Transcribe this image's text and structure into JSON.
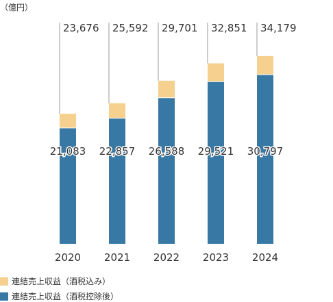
{
  "unit_label": "（億円）",
  "chart_data": {
    "type": "bar",
    "stacked": true,
    "categories": [
      "2020",
      "2021",
      "2022",
      "2023",
      "2024"
    ],
    "series": [
      {
        "name": "連結売上収益（酒税控除後）",
        "color": "#3878a4",
        "values": [
          21083,
          22857,
          26588,
          29521,
          30797
        ],
        "labels": [
          "21,083",
          "22,857",
          "26,588",
          "29,521",
          "30,797"
        ]
      },
      {
        "name": "連結売上収益（酒税込み）",
        "color": "#f5d08f",
        "totals": [
          23676,
          25592,
          29701,
          32851,
          34179
        ],
        "labels": [
          "23,676",
          "25,592",
          "29,701",
          "32,851",
          "34,179"
        ]
      }
    ],
    "grid": false
  },
  "legend": [
    {
      "label": "連結売上収益（酒税込み）",
      "color": "#f5d08f"
    },
    {
      "label": "連結売上収益（酒税控除後）",
      "color": "#3878a4"
    }
  ]
}
